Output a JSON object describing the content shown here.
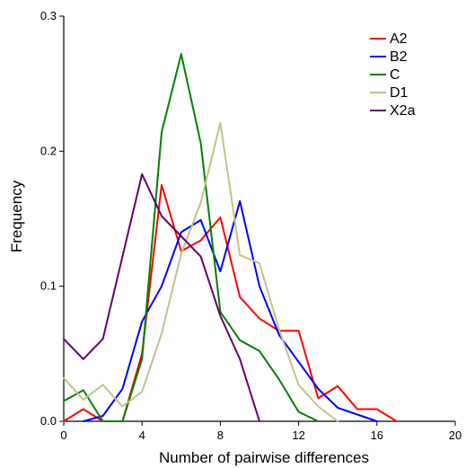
{
  "chart_data": {
    "type": "line",
    "title": "",
    "xlabel": "Number of pairwise differences",
    "ylabel": "Frequency",
    "xlim": [
      0,
      20
    ],
    "ylim": [
      0,
      0.3
    ],
    "x_ticks": [
      0,
      4,
      8,
      12,
      16,
      20
    ],
    "x_tick_labels": [
      "0",
      "4",
      "8",
      "12",
      "16",
      "20"
    ],
    "y_ticks": [
      0,
      0.1,
      0.2,
      0.3
    ],
    "y_tick_labels": [
      "0.0",
      "0.1",
      "0.2",
      "0.3"
    ],
    "grid": false,
    "legend_position": "top-right",
    "series": [
      {
        "name": "A2",
        "color": "#ff0000",
        "x": [
          0,
          1,
          2,
          3,
          4,
          5,
          6,
          7,
          8,
          9,
          10,
          11,
          12,
          13,
          14,
          15,
          16,
          17
        ],
        "y": [
          0.0,
          0.009,
          0.0,
          0.0,
          0.05,
          0.175,
          0.126,
          0.134,
          0.151,
          0.092,
          0.076,
          0.067,
          0.067,
          0.017,
          0.026,
          0.009,
          0.009,
          0.0
        ]
      },
      {
        "name": "B2",
        "color": "#0000ff",
        "x": [
          1,
          2,
          3,
          4,
          5,
          6,
          7,
          8,
          9,
          10,
          11,
          12,
          13,
          14,
          15,
          16
        ],
        "y": [
          0.0,
          0.004,
          0.024,
          0.074,
          0.1,
          0.14,
          0.149,
          0.111,
          0.163,
          0.1,
          0.064,
          0.044,
          0.024,
          0.01,
          0.005,
          0.0
        ]
      },
      {
        "name": "C",
        "color": "#008000",
        "x": [
          0,
          1,
          2,
          3,
          4,
          5,
          6,
          7,
          8,
          9,
          10,
          11,
          12,
          13
        ],
        "y": [
          0.015,
          0.023,
          0.0,
          0.0,
          0.046,
          0.214,
          0.272,
          0.206,
          0.081,
          0.06,
          0.052,
          0.031,
          0.007,
          0.0
        ]
      },
      {
        "name": "D1",
        "color": "#c2c28a",
        "x": [
          0,
          1,
          2,
          3,
          4,
          5,
          6,
          7,
          8,
          9,
          10,
          11,
          12,
          13,
          14
        ],
        "y": [
          0.032,
          0.016,
          0.027,
          0.011,
          0.022,
          0.065,
          0.124,
          0.162,
          0.221,
          0.123,
          0.117,
          0.068,
          0.027,
          0.011,
          0.0
        ]
      },
      {
        "name": "X2a",
        "color": "#660066",
        "x": [
          0,
          1,
          2,
          3,
          4,
          5,
          6,
          7,
          8,
          9,
          10
        ],
        "y": [
          0.061,
          0.046,
          0.061,
          0.122,
          0.183,
          0.152,
          0.137,
          0.122,
          0.078,
          0.046,
          0.0
        ]
      }
    ]
  }
}
